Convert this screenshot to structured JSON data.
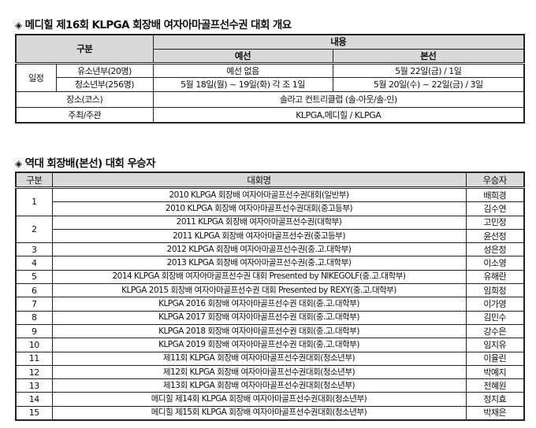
{
  "overview": {
    "title": "메디힐 제16회 KLPGA 회장배 여자아마골프선수권 대회 개요",
    "bullet_icon": "diamond-icon",
    "headers": {
      "category": "구분",
      "content": "내용",
      "prelim": "예선",
      "final": "본선"
    },
    "schedule_label": "일정",
    "rows": [
      {
        "label": "유소년부(20명)",
        "prelim": "예선 없음",
        "final": "5월 22일(금) / 1일"
      },
      {
        "label": "청소년부(256명)",
        "prelim": "5월 18일(월) ~ 19일(화) 각 조 1일",
        "final": "5월 20일(수) ~ 22일(금) / 3일"
      }
    ],
    "venue_label": "장소(코스)",
    "venue": "솔라고 컨트리클럽 (솔-아웃/솔-인)",
    "host_label": "주최/주관",
    "host": "KLPGA,메디힐 / KLPGA"
  },
  "winners": {
    "title": "역대 회장배(본선) 대회 우승자",
    "bullet_icon": "diamond-icon",
    "headers": {
      "no": "구분",
      "name": "대회명",
      "winner": "우승자"
    },
    "rows": [
      {
        "no": "1",
        "span": 2,
        "name": "2010 KLPGA 회장배 여자아마골프선수권대회(일반부)",
        "winner": "배희경"
      },
      {
        "no": "",
        "name": "2010 KLPGA 회장배 여자아마골프선수권대회(중고등부)",
        "winner": "김수연"
      },
      {
        "no": "2",
        "span": 2,
        "name": "2011 KLPGA 회장배 여자아마골프선수권(대학부)",
        "winner": "고민정"
      },
      {
        "no": "",
        "name": "2011 KLPGA 회장배 여자아마골프선수권(중고등부)",
        "winner": "윤선정"
      },
      {
        "no": "3",
        "name": "2012 KLPGA 회장배 여자아마골프선수권(중.고.대학부)",
        "winner": "성은정"
      },
      {
        "no": "4",
        "name": "2013 KLPGA 회장배 여자아마골프선수권(중.고.대학부)",
        "winner": "이소영"
      },
      {
        "no": "5",
        "name": "2014 KLPGA 회장배 여자아마골프선수권 대회 Presented by NIKEGOLF(중.고.대학부)",
        "winner": "유해란"
      },
      {
        "no": "6",
        "name": "KLPGA 2015 회장배 여자아마골프선수권 대회 Presented by REXY(중.고.대학부)",
        "winner": "임희정"
      },
      {
        "no": "7",
        "name": "KLPGA 2016 회장배 여자아마골프선수권 대회(중.고.대학부)",
        "winner": "이가영"
      },
      {
        "no": "8",
        "name": "KLPGA 2017 회장배 여자아마골프선수권 대회(중.고.대학부)",
        "winner": "김민수"
      },
      {
        "no": "9",
        "name": "KLPGA 2018 회장배 여자아마골프선수권 대회(중.고.대학부)",
        "winner": "강수은"
      },
      {
        "no": "10",
        "name": "KLPGA 2019 회장배 여자아마골프선수권 대회(중.고.대학부)",
        "winner": "임지유"
      },
      {
        "no": "11",
        "name": "제11회 KLPGA 회장배 여자아마골프선수권대회(청소년부)",
        "winner": "이율린"
      },
      {
        "no": "12",
        "name": "제12회 KLPGA 회장배 여자아마골프선수권대회(청소년부)",
        "winner": "박예지"
      },
      {
        "no": "13",
        "name": "제13회 KLPGA 회장배 여자아마골프선수권대회(청소년부)",
        "winner": "전혜원"
      },
      {
        "no": "14",
        "name": "메디힐 제14회 KLPGA 회장배 여자아마골프선수권대회(청소년부)",
        "winner": "정지효"
      },
      {
        "no": "15",
        "name": "메디힐 제15회 KLPGA 회장배 여자아마골프선수권대회(청소년부)",
        "winner": "박채은"
      }
    ]
  }
}
